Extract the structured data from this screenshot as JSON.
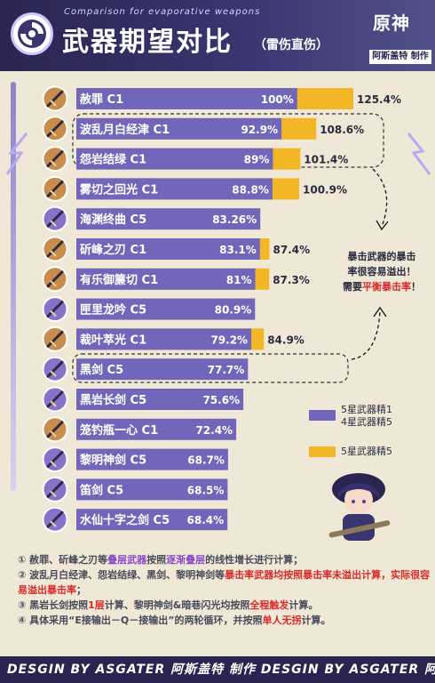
{
  "header": {
    "subtitle": "Comparison for evaporative weapons",
    "title": "武器期望对比",
    "paren": "（雷伤直伤）",
    "logo": "原神",
    "credit": "阿斯盖特 制作"
  },
  "colors": {
    "purple_bar": "#7266ba",
    "orange_bar": "#f3b626",
    "header_bg": "#2a2550",
    "highlight_red": "#d92a2a"
  },
  "chart_data": {
    "type": "bar",
    "orientation": "horizontal",
    "categories": [
      "赦罪 C1",
      "波乱月白经津 C1",
      "怨岩结绿 C1",
      "雾切之回光 C1",
      "海渊终曲 C5",
      "斫峰之刃 C1",
      "有乐御簾切 C1",
      "匣里龙吟 C5",
      "裁叶萃光 C1",
      "黑剑 C5",
      "黑岩长剑 C5",
      "笼钓瓶一心 C1",
      "黎明神剑 C5",
      "笛剑 C5",
      "水仙十字之剑 C5"
    ],
    "series": [
      {
        "name": "5星武器精1 4星武器精5",
        "values": [
          100,
          92.9,
          89,
          88.8,
          83.26,
          83.1,
          81,
          80.9,
          79.2,
          77.7,
          75.6,
          72.4,
          68.7,
          68.5,
          68.4
        ],
        "labels": [
          "100%",
          "92.9%",
          "89%",
          "88.8%",
          "83.26%",
          "83.1%",
          "81%",
          "80.9%",
          "79.2%",
          "77.7%",
          "75.6%",
          "72.4%",
          "68.7%",
          "68.5%",
          "68.4%"
        ]
      },
      {
        "name": "5星武器精5",
        "values": [
          125.4,
          108.6,
          101.4,
          100.9,
          null,
          87.4,
          87.3,
          null,
          84.9,
          null,
          null,
          null,
          null,
          null,
          null
        ],
        "labels": [
          "125.4%",
          "108.6%",
          "101.4%",
          "100.9%",
          null,
          "87.4%",
          "87.3%",
          null,
          "84.9%",
          null,
          null,
          null,
          null,
          null,
          null
        ]
      }
    ],
    "ylim": [
      0,
      125.4
    ],
    "legend_position": "right"
  },
  "legend": {
    "item1_line1": "5星武器精1",
    "item1_line2": "4星武器精5",
    "item2": "5星武器精5"
  },
  "callout": {
    "line1": "暴击武器的暴击",
    "line2": "率很容易溢出！",
    "line3a": "需要",
    "line3b": "平衡暴击率",
    "line3c": "！"
  },
  "notes": {
    "n1a": "① 赦罪、斫峰之刃等",
    "n1b": "叠层武器",
    "n1c": "按照",
    "n1d": "逐渐叠层",
    "n1e": "的线性增长进行计算；",
    "n2a": "② 波乱月白经津、怨岩结绿、黑剑、黎明神剑等",
    "n2b": "暴击率武器均按照暴击率未溢出计算，实际很容易溢出暴击率",
    "n2c": "；",
    "n3a": "③ 黑岩长剑按照",
    "n3b": "1层",
    "n3c": "计算、黎明神剑&暗巷闪光均按照",
    "n3d": "全程触发",
    "n3e": "计算。",
    "n4a": "④ 具体采用“E接输出－Q－接输出”的两轮循环，并按照",
    "n4b": "单人无拐",
    "n4c": "计算。"
  },
  "footer": {
    "text": "DESGIN BY ASGATER  阿斯盖特 制作  DESGIN BY ASGATER  阿斯盖特 制作"
  }
}
